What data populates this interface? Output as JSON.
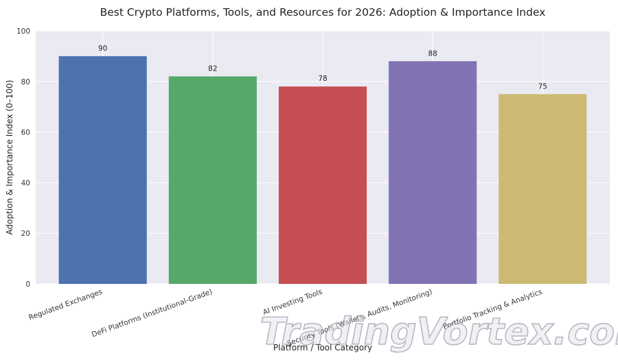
{
  "chart_data": {
    "type": "bar",
    "title": "Best Crypto Platforms, Tools, and Resources for 2026: Adoption & Importance Index",
    "xlabel": "Platform / Tool Category",
    "ylabel": "Adoption & Importance Index (0–100)",
    "categories": [
      "Regulated Exchanges",
      "DeFi Platforms (Institutional-Grade)",
      "AI Investing Tools",
      "Security Tools (Wallets, Audits, Monitoring)",
      "Portfolio Tracking & Analytics"
    ],
    "values": [
      90,
      82,
      78,
      88,
      75
    ],
    "colors": [
      "#4c72b0",
      "#55a868",
      "#c44e52",
      "#8172b2",
      "#ccb974"
    ],
    "ylim": [
      0,
      100
    ],
    "yticks": [
      0,
      20,
      40,
      60,
      80,
      100
    ],
    "grid": true,
    "plot_background": "#eaeaf2",
    "data_labels": true
  },
  "watermark": {
    "text": "TradingVortex.com"
  }
}
